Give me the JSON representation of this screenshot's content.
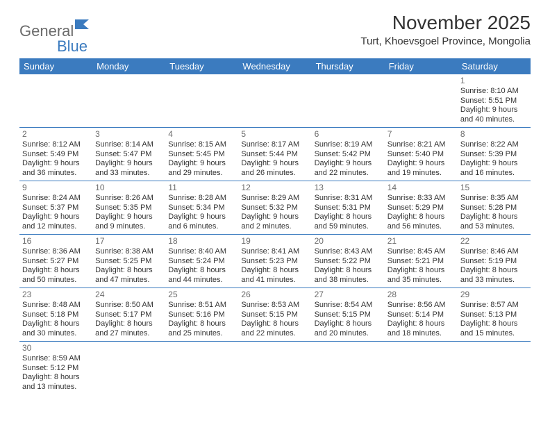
{
  "logo": {
    "word1": "General",
    "word2": "Blue"
  },
  "title": "November 2025",
  "location": "Turt, Khoevsgoel Province, Mongolia",
  "colors": {
    "header_bg": "#3b7bbf",
    "header_fg": "#ffffff",
    "grid_line": "#3b7bbf",
    "text": "#333333",
    "daynum": "#6b6b6b",
    "logo_gray": "#6b6b6b",
    "logo_blue": "#3b7bbf"
  },
  "weekdays": [
    "Sunday",
    "Monday",
    "Tuesday",
    "Wednesday",
    "Thursday",
    "Friday",
    "Saturday"
  ],
  "weeks": [
    [
      null,
      null,
      null,
      null,
      null,
      null,
      {
        "n": "1",
        "sr": "Sunrise: 8:10 AM",
        "ss": "Sunset: 5:51 PM",
        "d1": "Daylight: 9 hours",
        "d2": "and 40 minutes."
      }
    ],
    [
      {
        "n": "2",
        "sr": "Sunrise: 8:12 AM",
        "ss": "Sunset: 5:49 PM",
        "d1": "Daylight: 9 hours",
        "d2": "and 36 minutes."
      },
      {
        "n": "3",
        "sr": "Sunrise: 8:14 AM",
        "ss": "Sunset: 5:47 PM",
        "d1": "Daylight: 9 hours",
        "d2": "and 33 minutes."
      },
      {
        "n": "4",
        "sr": "Sunrise: 8:15 AM",
        "ss": "Sunset: 5:45 PM",
        "d1": "Daylight: 9 hours",
        "d2": "and 29 minutes."
      },
      {
        "n": "5",
        "sr": "Sunrise: 8:17 AM",
        "ss": "Sunset: 5:44 PM",
        "d1": "Daylight: 9 hours",
        "d2": "and 26 minutes."
      },
      {
        "n": "6",
        "sr": "Sunrise: 8:19 AM",
        "ss": "Sunset: 5:42 PM",
        "d1": "Daylight: 9 hours",
        "d2": "and 22 minutes."
      },
      {
        "n": "7",
        "sr": "Sunrise: 8:21 AM",
        "ss": "Sunset: 5:40 PM",
        "d1": "Daylight: 9 hours",
        "d2": "and 19 minutes."
      },
      {
        "n": "8",
        "sr": "Sunrise: 8:22 AM",
        "ss": "Sunset: 5:39 PM",
        "d1": "Daylight: 9 hours",
        "d2": "and 16 minutes."
      }
    ],
    [
      {
        "n": "9",
        "sr": "Sunrise: 8:24 AM",
        "ss": "Sunset: 5:37 PM",
        "d1": "Daylight: 9 hours",
        "d2": "and 12 minutes."
      },
      {
        "n": "10",
        "sr": "Sunrise: 8:26 AM",
        "ss": "Sunset: 5:35 PM",
        "d1": "Daylight: 9 hours",
        "d2": "and 9 minutes."
      },
      {
        "n": "11",
        "sr": "Sunrise: 8:28 AM",
        "ss": "Sunset: 5:34 PM",
        "d1": "Daylight: 9 hours",
        "d2": "and 6 minutes."
      },
      {
        "n": "12",
        "sr": "Sunrise: 8:29 AM",
        "ss": "Sunset: 5:32 PM",
        "d1": "Daylight: 9 hours",
        "d2": "and 2 minutes."
      },
      {
        "n": "13",
        "sr": "Sunrise: 8:31 AM",
        "ss": "Sunset: 5:31 PM",
        "d1": "Daylight: 8 hours",
        "d2": "and 59 minutes."
      },
      {
        "n": "14",
        "sr": "Sunrise: 8:33 AM",
        "ss": "Sunset: 5:29 PM",
        "d1": "Daylight: 8 hours",
        "d2": "and 56 minutes."
      },
      {
        "n": "15",
        "sr": "Sunrise: 8:35 AM",
        "ss": "Sunset: 5:28 PM",
        "d1": "Daylight: 8 hours",
        "d2": "and 53 minutes."
      }
    ],
    [
      {
        "n": "16",
        "sr": "Sunrise: 8:36 AM",
        "ss": "Sunset: 5:27 PM",
        "d1": "Daylight: 8 hours",
        "d2": "and 50 minutes."
      },
      {
        "n": "17",
        "sr": "Sunrise: 8:38 AM",
        "ss": "Sunset: 5:25 PM",
        "d1": "Daylight: 8 hours",
        "d2": "and 47 minutes."
      },
      {
        "n": "18",
        "sr": "Sunrise: 8:40 AM",
        "ss": "Sunset: 5:24 PM",
        "d1": "Daylight: 8 hours",
        "d2": "and 44 minutes."
      },
      {
        "n": "19",
        "sr": "Sunrise: 8:41 AM",
        "ss": "Sunset: 5:23 PM",
        "d1": "Daylight: 8 hours",
        "d2": "and 41 minutes."
      },
      {
        "n": "20",
        "sr": "Sunrise: 8:43 AM",
        "ss": "Sunset: 5:22 PM",
        "d1": "Daylight: 8 hours",
        "d2": "and 38 minutes."
      },
      {
        "n": "21",
        "sr": "Sunrise: 8:45 AM",
        "ss": "Sunset: 5:21 PM",
        "d1": "Daylight: 8 hours",
        "d2": "and 35 minutes."
      },
      {
        "n": "22",
        "sr": "Sunrise: 8:46 AM",
        "ss": "Sunset: 5:19 PM",
        "d1": "Daylight: 8 hours",
        "d2": "and 33 minutes."
      }
    ],
    [
      {
        "n": "23",
        "sr": "Sunrise: 8:48 AM",
        "ss": "Sunset: 5:18 PM",
        "d1": "Daylight: 8 hours",
        "d2": "and 30 minutes."
      },
      {
        "n": "24",
        "sr": "Sunrise: 8:50 AM",
        "ss": "Sunset: 5:17 PM",
        "d1": "Daylight: 8 hours",
        "d2": "and 27 minutes."
      },
      {
        "n": "25",
        "sr": "Sunrise: 8:51 AM",
        "ss": "Sunset: 5:16 PM",
        "d1": "Daylight: 8 hours",
        "d2": "and 25 minutes."
      },
      {
        "n": "26",
        "sr": "Sunrise: 8:53 AM",
        "ss": "Sunset: 5:15 PM",
        "d1": "Daylight: 8 hours",
        "d2": "and 22 minutes."
      },
      {
        "n": "27",
        "sr": "Sunrise: 8:54 AM",
        "ss": "Sunset: 5:15 PM",
        "d1": "Daylight: 8 hours",
        "d2": "and 20 minutes."
      },
      {
        "n": "28",
        "sr": "Sunrise: 8:56 AM",
        "ss": "Sunset: 5:14 PM",
        "d1": "Daylight: 8 hours",
        "d2": "and 18 minutes."
      },
      {
        "n": "29",
        "sr": "Sunrise: 8:57 AM",
        "ss": "Sunset: 5:13 PM",
        "d1": "Daylight: 8 hours",
        "d2": "and 15 minutes."
      }
    ],
    [
      {
        "n": "30",
        "sr": "Sunrise: 8:59 AM",
        "ss": "Sunset: 5:12 PM",
        "d1": "Daylight: 8 hours",
        "d2": "and 13 minutes."
      },
      null,
      null,
      null,
      null,
      null,
      null
    ]
  ]
}
